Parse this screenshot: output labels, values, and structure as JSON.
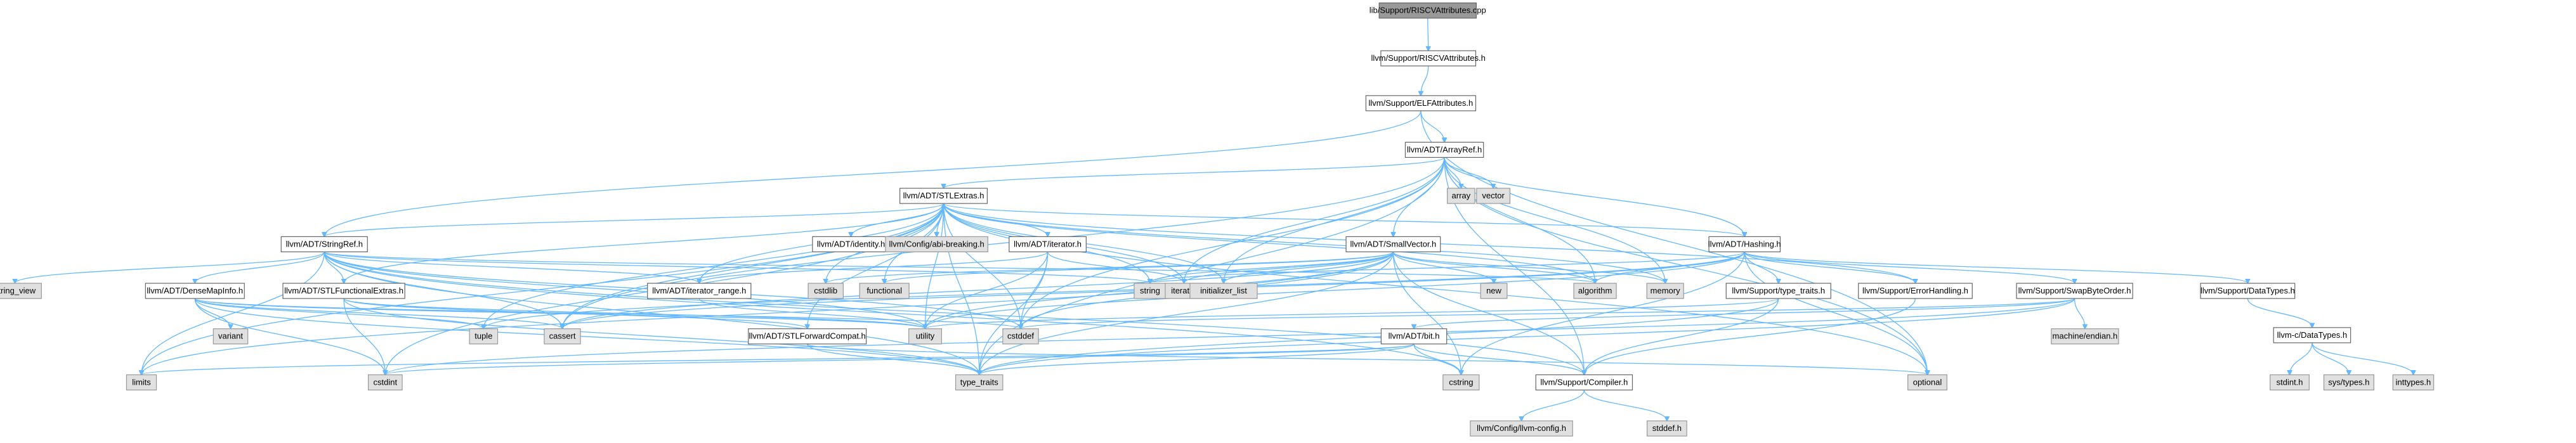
{
  "title": "lib/Support/RISCVAttributes.cpp",
  "colors": {
    "edge": "#63b8ff",
    "root_fill": "#999999",
    "doc_fill": "#ffffff",
    "sys_fill": "#e0e0e0",
    "border": "#666666"
  },
  "nodes": [
    {
      "id": "root",
      "label": "lib/Support/RISCVAttributes.cpp",
      "kind": "root"
    },
    {
      "id": "riscvattr",
      "label": "llvm/Support/RISCVAttributes.h",
      "kind": "doc"
    },
    {
      "id": "elfattr",
      "label": "llvm/Support/ELFAttributes.h",
      "kind": "doc"
    },
    {
      "id": "arrayref",
      "label": "llvm/ADT/ArrayRef.h",
      "kind": "doc"
    },
    {
      "id": "array",
      "label": "array",
      "kind": "sys"
    },
    {
      "id": "vector",
      "label": "vector",
      "kind": "sys"
    },
    {
      "id": "stlextras",
      "label": "llvm/ADT/STLExtras.h",
      "kind": "doc"
    },
    {
      "id": "identity",
      "label": "llvm/ADT/identity.h",
      "kind": "doc"
    },
    {
      "id": "abibreaking",
      "label": "llvm/Config/abi-breaking.h",
      "kind": "sys"
    },
    {
      "id": "iteratorh",
      "label": "llvm/ADT/iterator.h",
      "kind": "doc"
    },
    {
      "id": "stringref",
      "label": "llvm/ADT/StringRef.h",
      "kind": "doc"
    },
    {
      "id": "smallvector",
      "label": "llvm/ADT/SmallVector.h",
      "kind": "doc"
    },
    {
      "id": "hashing",
      "label": "llvm/ADT/Hashing.h",
      "kind": "doc"
    },
    {
      "id": "datatypes",
      "label": "llvm/Support/DataTypes.h",
      "kind": "doc"
    },
    {
      "id": "string_view",
      "label": "string_view",
      "kind": "sys"
    },
    {
      "id": "densemapinfo",
      "label": "llvm/ADT/DenseMapInfo.h",
      "kind": "doc"
    },
    {
      "id": "stlfunctional",
      "label": "llvm/ADT/STLFunctionalExtras.h",
      "kind": "doc"
    },
    {
      "id": "iterrange",
      "label": "llvm/ADT/iterator_range.h",
      "kind": "doc"
    },
    {
      "id": "cstdlib",
      "label": "cstdlib",
      "kind": "sys"
    },
    {
      "id": "functional",
      "label": "functional",
      "kind": "sys"
    },
    {
      "id": "string",
      "label": "string",
      "kind": "sys"
    },
    {
      "id": "iterator",
      "label": "iterator",
      "kind": "sys"
    },
    {
      "id": "initlist",
      "label": "initializer_list",
      "kind": "sys"
    },
    {
      "id": "new",
      "label": "new",
      "kind": "sys"
    },
    {
      "id": "algorithm",
      "label": "algorithm",
      "kind": "sys"
    },
    {
      "id": "memory",
      "label": "memory",
      "kind": "sys"
    },
    {
      "id": "typetraitsh",
      "label": "llvm/Support/type_traits.h",
      "kind": "doc"
    },
    {
      "id": "errorhandling",
      "label": "llvm/Support/ErrorHandling.h",
      "kind": "doc"
    },
    {
      "id": "swapbyteorder",
      "label": "llvm/Support/SwapByteOrder.h",
      "kind": "doc"
    },
    {
      "id": "cdatatypes",
      "label": "llvm-c/DataTypes.h",
      "kind": "doc"
    },
    {
      "id": "variant",
      "label": "variant",
      "kind": "sys"
    },
    {
      "id": "tuple",
      "label": "tuple",
      "kind": "sys"
    },
    {
      "id": "cassert",
      "label": "cassert",
      "kind": "sys"
    },
    {
      "id": "utility",
      "label": "utility",
      "kind": "sys"
    },
    {
      "id": "cstddef",
      "label": "cstddef",
      "kind": "sys"
    },
    {
      "id": "stlforward",
      "label": "llvm/ADT/STLForwardCompat.h",
      "kind": "doc"
    },
    {
      "id": "bit",
      "label": "llvm/ADT/bit.h",
      "kind": "doc"
    },
    {
      "id": "machineendian",
      "label": "machine/endian.h",
      "kind": "sys"
    },
    {
      "id": "stdint",
      "label": "stdint.h",
      "kind": "sys"
    },
    {
      "id": "systypes",
      "label": "sys/types.h",
      "kind": "sys"
    },
    {
      "id": "inttypes",
      "label": "inttypes.h",
      "kind": "sys"
    },
    {
      "id": "limits",
      "label": "limits",
      "kind": "sys"
    },
    {
      "id": "cstdint",
      "label": "cstdint",
      "kind": "sys"
    },
    {
      "id": "type_traits",
      "label": "type_traits",
      "kind": "sys"
    },
    {
      "id": "cstring",
      "label": "cstring",
      "kind": "sys"
    },
    {
      "id": "compiler",
      "label": "llvm/Support/Compiler.h",
      "kind": "doc"
    },
    {
      "id": "optional",
      "label": "optional",
      "kind": "sys"
    },
    {
      "id": "llvmconfig",
      "label": "llvm/Config/llvm-config.h",
      "kind": "sys"
    },
    {
      "id": "stddef",
      "label": "stddef.h",
      "kind": "sys"
    }
  ],
  "edges": [
    [
      "root",
      "riscvattr"
    ],
    [
      "riscvattr",
      "elfattr"
    ],
    [
      "elfattr",
      "arrayref"
    ],
    [
      "elfattr",
      "stringref"
    ],
    [
      "elfattr",
      "optional"
    ],
    [
      "arrayref",
      "array"
    ],
    [
      "arrayref",
      "vector"
    ],
    [
      "arrayref",
      "stlextras"
    ],
    [
      "arrayref",
      "smallvector"
    ],
    [
      "arrayref",
      "hashing"
    ],
    [
      "arrayref",
      "compiler"
    ],
    [
      "arrayref",
      "algorithm"
    ],
    [
      "arrayref",
      "cassert"
    ],
    [
      "arrayref",
      "cstddef"
    ],
    [
      "arrayref",
      "initlist"
    ],
    [
      "arrayref",
      "iterator"
    ],
    [
      "arrayref",
      "memory"
    ],
    [
      "arrayref",
      "type_traits"
    ],
    [
      "arrayref",
      "optional"
    ],
    [
      "stlextras",
      "identity"
    ],
    [
      "stlextras",
      "abibreaking"
    ],
    [
      "stlextras",
      "iteratorh"
    ],
    [
      "stlextras",
      "iterrange"
    ],
    [
      "stlextras",
      "stlforward"
    ],
    [
      "stlextras",
      "stlfunctional"
    ],
    [
      "stlextras",
      "hashing"
    ],
    [
      "stlextras",
      "errorhandling"
    ],
    [
      "stlextras",
      "algorithm"
    ],
    [
      "stlextras",
      "cassert"
    ],
    [
      "stlextras",
      "cstddef"
    ],
    [
      "stlextras",
      "cstdint"
    ],
    [
      "stlextras",
      "cstdlib"
    ],
    [
      "stlextras",
      "functional"
    ],
    [
      "stlextras",
      "initlist"
    ],
    [
      "stlextras",
      "iterator"
    ],
    [
      "stlextras",
      "limits"
    ],
    [
      "stlextras",
      "memory"
    ],
    [
      "stlextras",
      "optional"
    ],
    [
      "stlextras",
      "tuple"
    ],
    [
      "stlextras",
      "type_traits"
    ],
    [
      "stlextras",
      "utility"
    ],
    [
      "stlextras",
      "string"
    ],
    [
      "iteratorh",
      "iterrange"
    ],
    [
      "iteratorh",
      "cstddef"
    ],
    [
      "iteratorh",
      "iterator"
    ],
    [
      "iteratorh",
      "type_traits"
    ],
    [
      "iteratorh",
      "utility"
    ],
    [
      "stringref",
      "densemapinfo"
    ],
    [
      "stringref",
      "stlextras"
    ],
    [
      "stringref",
      "stlfunctional"
    ],
    [
      "stringref",
      "iterrange"
    ],
    [
      "stringref",
      "compiler"
    ],
    [
      "stringref",
      "algorithm"
    ],
    [
      "stringref",
      "cassert"
    ],
    [
      "stringref",
      "cstddef"
    ],
    [
      "stringref",
      "cstring"
    ],
    [
      "stringref",
      "limits"
    ],
    [
      "stringref",
      "string"
    ],
    [
      "stringref",
      "string_view"
    ],
    [
      "stringref",
      "type_traits"
    ],
    [
      "stringref",
      "utility"
    ],
    [
      "smallvector",
      "compiler"
    ],
    [
      "smallvector",
      "type_traits"
    ],
    [
      "smallvector",
      "algorithm"
    ],
    [
      "smallvector",
      "cassert"
    ],
    [
      "smallvector",
      "cstddef"
    ],
    [
      "smallvector",
      "cstdlib"
    ],
    [
      "smallvector",
      "cstring"
    ],
    [
      "smallvector",
      "functional"
    ],
    [
      "smallvector",
      "initlist"
    ],
    [
      "smallvector",
      "iterator"
    ],
    [
      "smallvector",
      "limits"
    ],
    [
      "smallvector",
      "memory"
    ],
    [
      "smallvector",
      "new"
    ],
    [
      "smallvector",
      "utility"
    ],
    [
      "smallvector",
      "string"
    ],
    [
      "hashing",
      "errorhandling"
    ],
    [
      "hashing",
      "datatypes"
    ],
    [
      "hashing",
      "swapbyteorder"
    ],
    [
      "hashing",
      "typetraitsh"
    ],
    [
      "hashing",
      "algorithm"
    ],
    [
      "hashing",
      "cassert"
    ],
    [
      "hashing",
      "cstring"
    ],
    [
      "hashing",
      "optional"
    ],
    [
      "hashing",
      "string"
    ],
    [
      "hashing",
      "tuple"
    ],
    [
      "hashing",
      "utility"
    ],
    [
      "datatypes",
      "cdatatypes"
    ],
    [
      "cdatatypes",
      "inttypes"
    ],
    [
      "cdatatypes",
      "stdint"
    ],
    [
      "cdatatypes",
      "systypes"
    ],
    [
      "densemapinfo",
      "cassert"
    ],
    [
      "densemapinfo",
      "cstddef"
    ],
    [
      "densemapinfo",
      "cstdint"
    ],
    [
      "densemapinfo",
      "tuple"
    ],
    [
      "densemapinfo",
      "type_traits"
    ],
    [
      "densemapinfo",
      "utility"
    ],
    [
      "densemapinfo",
      "variant"
    ],
    [
      "stlfunctional",
      "stlforward"
    ],
    [
      "stlfunctional",
      "cstdint"
    ],
    [
      "stlfunctional",
      "type_traits"
    ],
    [
      "stlfunctional",
      "utility"
    ],
    [
      "iterrange",
      "utility"
    ],
    [
      "typetraitsh",
      "compiler"
    ],
    [
      "typetraitsh",
      "type_traits"
    ],
    [
      "typetraitsh",
      "utility"
    ],
    [
      "errorhandling",
      "compiler"
    ],
    [
      "swapbyteorder",
      "bit"
    ],
    [
      "swapbyteorder",
      "cstddef"
    ],
    [
      "swapbyteorder",
      "cstdint"
    ],
    [
      "swapbyteorder",
      "type_traits"
    ],
    [
      "swapbyteorder",
      "machineendian"
    ],
    [
      "stlforward",
      "optional"
    ],
    [
      "stlforward",
      "type_traits"
    ],
    [
      "bit",
      "compiler"
    ],
    [
      "bit",
      "cstdint"
    ],
    [
      "bit",
      "limits"
    ],
    [
      "bit",
      "type_traits"
    ],
    [
      "bit",
      "cstring"
    ],
    [
      "compiler",
      "llvmconfig"
    ],
    [
      "compiler",
      "stddef"
    ]
  ]
}
